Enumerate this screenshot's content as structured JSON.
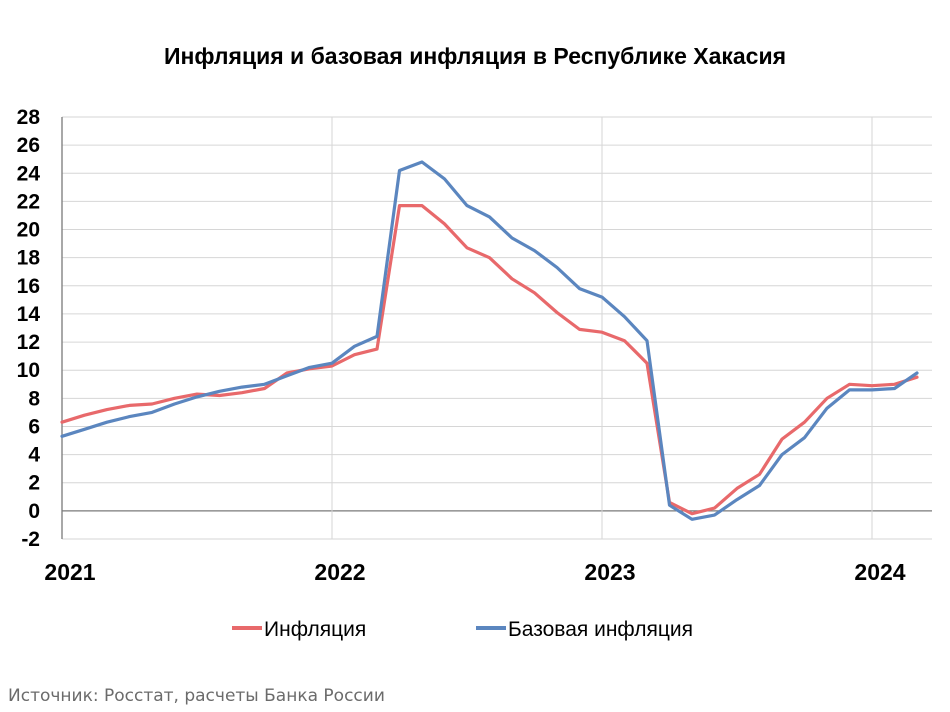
{
  "chart_data": {
    "type": "line",
    "title": "Инфляция и базовая инфляция в Республике Хакасия",
    "xlabel": "",
    "ylabel": "",
    "ylim": [
      -2,
      28
    ],
    "yticks": [
      "28",
      "26",
      "24",
      "22",
      "20",
      "18",
      "16",
      "14",
      "12",
      "10",
      "8",
      "6",
      "4",
      "2",
      "0",
      "-2"
    ],
    "xticks": [
      "2021",
      "2022",
      "2023",
      "2024"
    ],
    "x_start": "2021-01",
    "grid": true,
    "legend_position": "bottom",
    "series": [
      {
        "name": "Инфляция",
        "color": "#e8696b",
        "values": [
          6.3,
          6.8,
          7.2,
          7.5,
          7.6,
          8.0,
          8.3,
          8.2,
          8.4,
          8.7,
          9.8,
          10.1,
          10.3,
          11.1,
          11.5,
          21.7,
          21.7,
          20.4,
          18.7,
          18.0,
          16.5,
          15.5,
          14.1,
          12.9,
          12.7,
          12.1,
          10.5,
          0.6,
          -0.2,
          0.2,
          1.6,
          2.6,
          5.1,
          6.3,
          8.0,
          9.0,
          8.9,
          9.0,
          9.5
        ]
      },
      {
        "name": "Базовая инфляция",
        "color": "#5b86bf",
        "values": [
          5.3,
          5.8,
          6.3,
          6.7,
          7.0,
          7.6,
          8.1,
          8.5,
          8.8,
          9.0,
          9.6,
          10.2,
          10.5,
          11.7,
          12.4,
          24.2,
          24.8,
          23.6,
          21.7,
          20.9,
          19.4,
          18.5,
          17.3,
          15.8,
          15.2,
          13.8,
          12.1,
          0.4,
          -0.6,
          -0.3,
          0.8,
          1.8,
          4.0,
          5.2,
          7.3,
          8.6,
          8.6,
          8.7,
          9.8
        ]
      }
    ]
  },
  "source": "Источник: Росстат, расчеты Банка России"
}
